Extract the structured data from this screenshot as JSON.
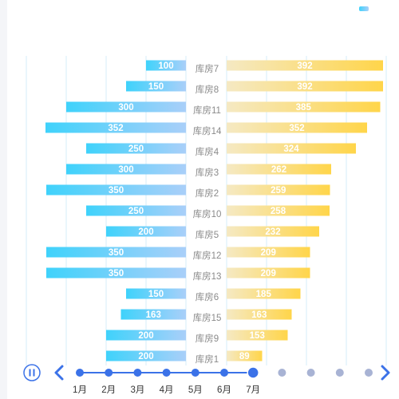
{
  "legend": {
    "items": [
      {
        "swatch": [
          "#3fd2fb",
          "#a9cff9"
        ]
      },
      {
        "swatch": [
          "#f5e9c3",
          "#ffd54a"
        ]
      }
    ]
  },
  "chart_data": {
    "type": "bar",
    "categories": [
      "库房7",
      "库房8",
      "库房11",
      "库房14",
      "库房4",
      "库房3",
      "库房2",
      "库房10",
      "库房5",
      "库房12",
      "库房13",
      "库房6",
      "库房15",
      "库房9",
      "库房1"
    ],
    "series": [
      {
        "values": [
          100,
          150,
          300,
          352,
          250,
          300,
          350,
          250,
          200,
          350,
          350,
          150,
          163,
          200,
          200
        ],
        "colors": [
          "#3fd2fb",
          "#a9cff9"
        ]
      },
      {
        "values": [
          392,
          392,
          385,
          352,
          324,
          262,
          259,
          258,
          232,
          209,
          209,
          185,
          163,
          153,
          89
        ],
        "colors": [
          "#f5e9c3",
          "#ffd54a"
        ]
      }
    ],
    "xlim_left": [
      0,
      400
    ],
    "xlim_right": [
      0,
      400
    ],
    "grid": true
  },
  "timeline": {
    "months": [
      "1月",
      "2月",
      "3月",
      "4月",
      "5月",
      "6月",
      "7月",
      "",
      "",
      "",
      ""
    ],
    "current_index": 6,
    "colors": {
      "active": "#3b72e8",
      "inactive": "#a8b3d4"
    }
  }
}
